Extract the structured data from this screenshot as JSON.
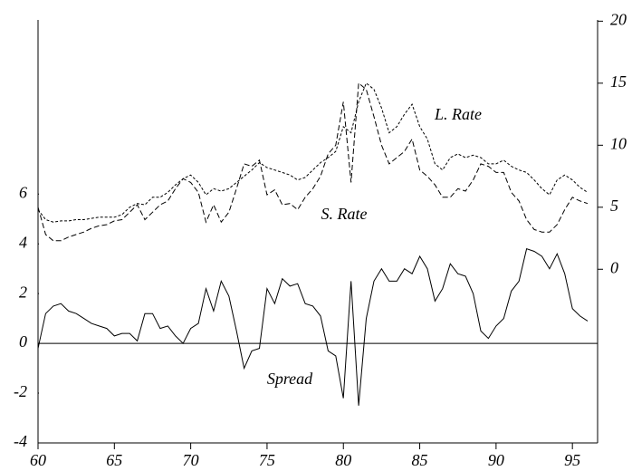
{
  "chart_data": {
    "type": "line",
    "x": [
      60,
      60.5,
      61,
      61.5,
      62,
      62.5,
      63,
      63.5,
      64,
      64.5,
      65,
      65.5,
      66,
      66.5,
      67,
      67.5,
      68,
      68.5,
      69,
      69.5,
      70,
      70.5,
      71,
      71.5,
      72,
      72.5,
      73,
      73.5,
      74,
      74.5,
      75,
      75.5,
      76,
      76.5,
      77,
      77.5,
      78,
      78.5,
      79,
      79.5,
      80,
      80.5,
      81,
      81.5,
      82,
      82.5,
      83,
      83.5,
      84,
      84.5,
      85,
      85.5,
      86,
      86.5,
      87,
      87.5,
      88,
      88.5,
      89,
      89.5,
      90,
      90.5,
      91,
      91.5,
      92,
      92.5,
      93,
      93.5,
      94,
      94.5,
      95,
      95.5,
      96
    ],
    "series": [
      {
        "name": "Spread",
        "color": "#000000",
        "dash": "none",
        "values": [
          -0.2,
          1.2,
          1.5,
          1.6,
          1.3,
          1.2,
          1.0,
          0.8,
          0.7,
          0.6,
          0.3,
          0.4,
          0.4,
          0.1,
          1.2,
          1.2,
          0.6,
          0.7,
          0.3,
          0.0,
          0.6,
          0.8,
          2.2,
          1.3,
          2.5,
          1.9,
          0.5,
          -1.0,
          -0.3,
          -0.2,
          2.2,
          1.6,
          2.6,
          2.3,
          2.4,
          1.6,
          1.5,
          1.1,
          -0.3,
          -0.5,
          -2.2,
          2.5,
          -2.5,
          1.0,
          2.5,
          3.0,
          2.5,
          2.5,
          3.0,
          2.8,
          3.5,
          3.0,
          1.7,
          2.2,
          3.2,
          2.8,
          2.7,
          2.0,
          0.5,
          0.2,
          0.7,
          1.0,
          2.1,
          2.5,
          3.8,
          3.7,
          3.5,
          3.0,
          3.6,
          2.8,
          1.4,
          1.1,
          0.9
        ]
      },
      {
        "name": "L. Rate",
        "color": "#000000",
        "dash": "3,2",
        "axis": "y2",
        "values": [
          4.8,
          4.0,
          3.8,
          3.9,
          3.9,
          4.0,
          4.0,
          4.1,
          4.2,
          4.2,
          4.2,
          4.4,
          5.0,
          5.3,
          5.2,
          5.8,
          5.8,
          6.2,
          6.8,
          7.3,
          7.6,
          7.0,
          6.0,
          6.5,
          6.3,
          6.5,
          7.0,
          7.5,
          8.0,
          8.6,
          8.2,
          8.0,
          7.8,
          7.6,
          7.2,
          7.4,
          8.0,
          8.6,
          9.0,
          9.5,
          11.5,
          11.0,
          13.5,
          15.0,
          14.5,
          13.0,
          11.0,
          11.5,
          12.5,
          13.3,
          11.5,
          10.5,
          8.5,
          8.0,
          9.0,
          9.3,
          9.0,
          9.2,
          9.0,
          8.5,
          8.5,
          8.8,
          8.3,
          8.0,
          7.8,
          7.2,
          6.5,
          6.0,
          7.2,
          7.6,
          7.2,
          6.6,
          6.2
        ]
      },
      {
        "name": "S. Rate",
        "color": "#000000",
        "dash": "6,3",
        "axis": "y2",
        "values": [
          5.0,
          2.8,
          2.3,
          2.3,
          2.6,
          2.8,
          3.0,
          3.3,
          3.5,
          3.6,
          3.9,
          4.0,
          4.6,
          5.2,
          4.0,
          4.6,
          5.2,
          5.5,
          6.5,
          7.3,
          7.0,
          6.2,
          3.8,
          5.2,
          3.8,
          4.6,
          6.5,
          8.5,
          8.3,
          8.8,
          6.0,
          6.4,
          5.2,
          5.3,
          4.8,
          5.8,
          6.5,
          7.5,
          9.3,
          10.0,
          13.5,
          7.0,
          15.0,
          14.5,
          12.3,
          10.0,
          8.5,
          9.0,
          9.5,
          10.5,
          8.0,
          7.5,
          6.8,
          5.8,
          5.8,
          6.5,
          6.3,
          7.2,
          8.5,
          8.3,
          7.8,
          7.8,
          6.2,
          5.5,
          4.0,
          3.2,
          3.0,
          3.0,
          3.6,
          4.8,
          5.8,
          5.5,
          5.3
        ]
      }
    ],
    "xlim": [
      60,
      96.65
    ],
    "xticks": [
      60,
      65,
      70,
      75,
      80,
      85,
      90,
      95
    ],
    "ylim": [
      -4,
      13
    ],
    "yticks": [
      -4,
      -2,
      0,
      2,
      4,
      6
    ],
    "y2lim": [
      -14,
      20.1
    ],
    "y2ticks": [
      0,
      5,
      10,
      15,
      20
    ],
    "zero_line": true
  }
}
